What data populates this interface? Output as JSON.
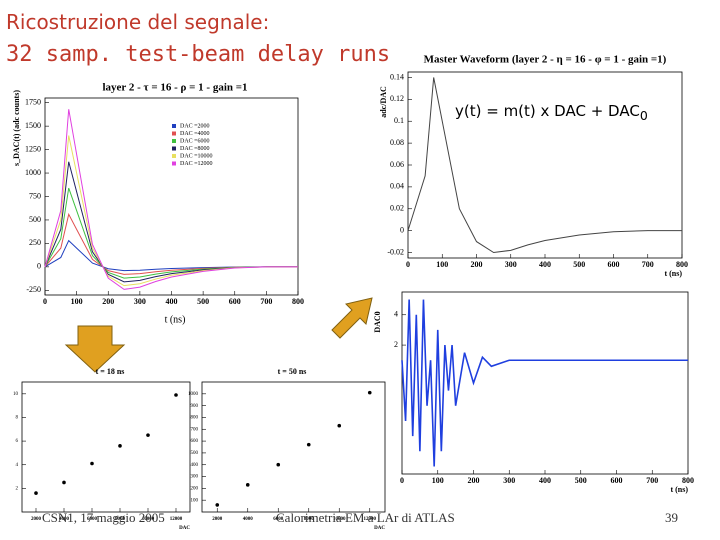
{
  "slide": {
    "title": "Ricostruzione del segnale:",
    "subtitle": "32 samp. test-beam delay runs",
    "formula": "y(t) = m(t) x DAC + DAC",
    "formula_sub": "0",
    "footer_left": "CSN1, 17 maggio 2005",
    "footer_center": "Calorimetria EM a LAr di ATLAS",
    "page_number": "39"
  },
  "chart_data": [
    {
      "type": "line",
      "title": "layer 2 - τ = 16 - ρ = 1 - gain =1",
      "xlabel": "t (ns)",
      "ylabel": "s_DAC(t) (adc counts)",
      "x": [
        0,
        50,
        75,
        100,
        150,
        200,
        250,
        300,
        350,
        400,
        500,
        600,
        700,
        800
      ],
      "series": [
        {
          "name": "DAC =2000",
          "color": "#1f3fbf",
          "values": [
            0,
            100,
            280,
            200,
            40,
            -20,
            -40,
            -36,
            -26,
            -18,
            -8,
            -2,
            0,
            0
          ]
        },
        {
          "name": "DAC =4000",
          "color": "#e05050",
          "values": [
            0,
            200,
            560,
            400,
            80,
            -40,
            -80,
            -72,
            -52,
            -36,
            -16,
            -4,
            0,
            0
          ]
        },
        {
          "name": "DAC =6000",
          "color": "#40c040",
          "values": [
            0,
            300,
            840,
            600,
            120,
            -60,
            -120,
            -108,
            -78,
            -54,
            -24,
            -6,
            0,
            0
          ]
        },
        {
          "name": "DAC =8000",
          "color": "#202060",
          "values": [
            0,
            400,
            1120,
            800,
            160,
            -80,
            -160,
            -144,
            -104,
            -72,
            -32,
            -8,
            0,
            0
          ]
        },
        {
          "name": "DAC =10000",
          "color": "#e8e060",
          "values": [
            0,
            500,
            1400,
            1000,
            200,
            -100,
            -200,
            -180,
            -130,
            -90,
            -40,
            -10,
            0,
            0
          ]
        },
        {
          "name": "DAC =12000",
          "color": "#e040e0",
          "values": [
            0,
            600,
            1680,
            1200,
            240,
            -120,
            -240,
            -216,
            -156,
            -108,
            -48,
            -12,
            0,
            0
          ]
        }
      ],
      "xlim": [
        0,
        800
      ],
      "xticks": [
        0,
        100,
        200,
        300,
        400,
        500,
        600,
        700,
        800
      ],
      "ylim": [
        -300,
        1800
      ],
      "yticks": [
        -250,
        0,
        250,
        500,
        750,
        1000,
        1250,
        1500,
        1750
      ]
    },
    {
      "type": "line",
      "title": "Master Waveform (layer 2 - η = 16 - φ = 1 - gain =1)",
      "xlabel": "t (ns)",
      "ylabel": "adc/DAC",
      "x": [
        0,
        50,
        75,
        100,
        150,
        200,
        250,
        300,
        350,
        400,
        500,
        600,
        700,
        800
      ],
      "series": [
        {
          "color": "#444",
          "values": [
            0,
            0.05,
            0.14,
            0.1,
            0.02,
            -0.01,
            -0.02,
            -0.018,
            -0.013,
            -0.009,
            -0.004,
            -0.001,
            0,
            0
          ]
        }
      ],
      "xlim": [
        0,
        800
      ],
      "xticks": [
        0,
        100,
        200,
        300,
        400,
        500,
        600,
        700,
        800
      ],
      "ylim": [
        -0.025,
        0.145
      ],
      "yticks": [
        -0.02,
        0,
        0.02,
        0.04,
        0.06,
        0.08,
        0.1,
        0.12,
        0.14
      ]
    },
    {
      "type": "line",
      "xlabel": "t (ns)",
      "ylabel": "DAC0",
      "x": [
        0,
        10,
        20,
        30,
        40,
        50,
        60,
        70,
        80,
        90,
        100,
        110,
        120,
        130,
        140,
        150,
        175,
        200,
        225,
        250,
        300,
        400,
        500,
        600,
        700,
        800
      ],
      "series": [
        {
          "color": "#1f3fdf",
          "values": [
            1,
            -3,
            5,
            -4,
            4,
            -5,
            5,
            -2,
            1,
            -6,
            3,
            -5,
            2,
            -1,
            2,
            -2,
            1.5,
            -0.5,
            1.2,
            0.6,
            1,
            1,
            1,
            1,
            1,
            1
          ]
        }
      ],
      "xlim": [
        0,
        800
      ],
      "xticks": [
        0,
        100,
        200,
        300,
        400,
        500,
        600,
        700,
        800
      ],
      "ylim": [
        -6.5,
        5.5
      ],
      "yticks": [
        2,
        4
      ]
    },
    {
      "type": "scatter",
      "title": "t = 18 ns",
      "xlabel": "DAC",
      "x": [
        2000,
        4000,
        6000,
        8000,
        10000,
        12000
      ],
      "series": [
        {
          "color": "#000",
          "values": [
            1.6,
            2.5,
            4.1,
            5.6,
            6.5,
            9.9
          ]
        }
      ],
      "xlim": [
        1000,
        13000
      ],
      "xticks": [
        2000,
        4000,
        6000,
        8000,
        10000,
        12000
      ],
      "ylim": [
        0,
        11
      ],
      "yticks": [
        2,
        4,
        6,
        8,
        10
      ]
    },
    {
      "type": "scatter",
      "title": "t = 50 ns",
      "xlabel": "DAC",
      "x": [
        2000,
        4000,
        6000,
        8000,
        10000,
        12000
      ],
      "series": [
        {
          "color": "#000",
          "values": [
            60,
            230,
            400,
            570,
            730,
            1010
          ]
        }
      ],
      "xlim": [
        1000,
        13000
      ],
      "xticks": [
        2000,
        4000,
        6000,
        8000,
        10000,
        12000
      ],
      "ylim": [
        0,
        1100
      ],
      "yticks": [
        100,
        200,
        300,
        400,
        500,
        600,
        700,
        800,
        900,
        1000
      ]
    }
  ]
}
